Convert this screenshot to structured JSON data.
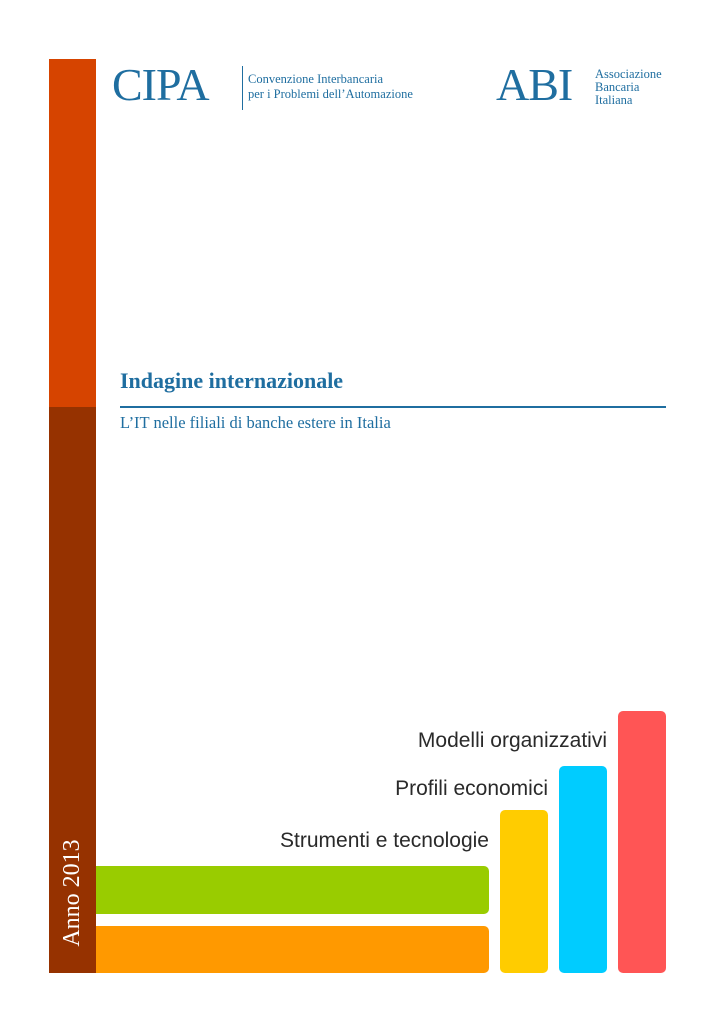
{
  "logos": {
    "cipa": {
      "wordmark": "CIPA",
      "tagline_line1": "Convenzione Interbancaria",
      "tagline_line2": "per i Problemi dell’Automazione"
    },
    "abi": {
      "wordmark": "ABI",
      "line1": "Associazione",
      "line2": "Bancaria",
      "line3": "Italiana"
    }
  },
  "cover": {
    "title": "Indagine internazionale",
    "subtitle": "L’IT nelle filiali di banche estere in Italia",
    "year": "Anno 2013",
    "topics": [
      "Modelli organizzativi",
      "Profili economici",
      "Strumenti e tecnologie"
    ]
  },
  "colors": {
    "strip_top": "#d64400",
    "strip_bottom": "#963200",
    "brand_blue": "#1f6ea0",
    "bar_green": "#99cc00",
    "bar_orange": "#ff9900",
    "bar_yellow": "#ffcc00",
    "bar_cyan": "#00ccff",
    "bar_red": "#ff5555"
  }
}
